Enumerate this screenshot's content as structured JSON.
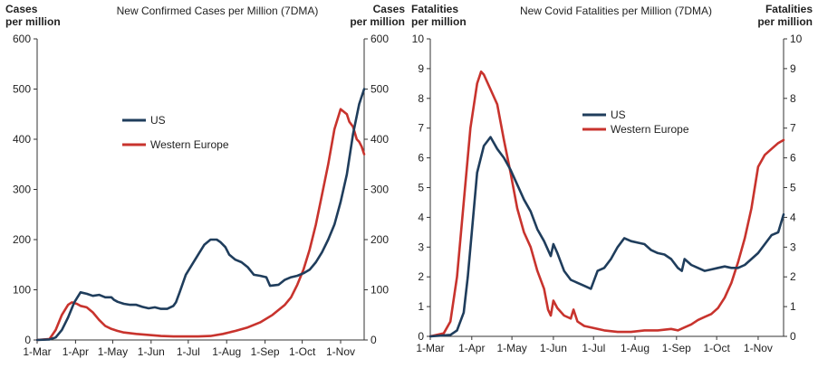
{
  "chart_data": [
    {
      "type": "line",
      "title": "New Confirmed  Cases per Million (7DMA)",
      "ylabel_left": [
        "Cases",
        "per million"
      ],
      "ylabel_right": [
        "Cases",
        "per million"
      ],
      "ylim": [
        0,
        600
      ],
      "yticks": [
        "0",
        "100",
        "200",
        "300",
        "400",
        "500",
        "600"
      ],
      "xlim": [
        0,
        264
      ],
      "xticks": [
        {
          "label": "1-Mar",
          "x": 0
        },
        {
          "label": "1-Apr",
          "x": 31
        },
        {
          "label": "1-May",
          "x": 61
        },
        {
          "label": "1-Jun",
          "x": 92
        },
        {
          "label": "1-Jul",
          "x": 122
        },
        {
          "label": "1-Aug",
          "x": 153
        },
        {
          "label": "1-Sep",
          "x": 184
        },
        {
          "label": "1-Oct",
          "x": 214
        },
        {
          "label": "1-Nov",
          "x": 245
        }
      ],
      "series": [
        {
          "name": "US",
          "color": "#1f3d5c",
          "x": [
            0,
            10,
            15,
            20,
            25,
            30,
            35,
            40,
            45,
            50,
            55,
            60,
            62,
            65,
            70,
            75,
            80,
            85,
            90,
            95,
            100,
            105,
            110,
            112,
            115,
            120,
            125,
            130,
            135,
            140,
            145,
            148,
            152,
            155,
            160,
            165,
            170,
            175,
            180,
            185,
            188,
            195,
            200,
            205,
            210,
            215,
            220,
            225,
            230,
            235,
            240,
            245,
            250,
            255,
            260,
            264
          ],
          "y": [
            0,
            1,
            5,
            20,
            45,
            75,
            95,
            92,
            88,
            90,
            85,
            85,
            80,
            76,
            72,
            70,
            70,
            66,
            63,
            65,
            62,
            62,
            68,
            75,
            95,
            130,
            150,
            170,
            190,
            200,
            200,
            195,
            185,
            170,
            160,
            155,
            145,
            130,
            128,
            125,
            108,
            110,
            120,
            125,
            128,
            133,
            140,
            155,
            175,
            200,
            230,
            275,
            330,
            410,
            470,
            500
          ]
        },
        {
          "name": "Western Europe",
          "color": "#c8332d",
          "x": [
            0,
            10,
            15,
            20,
            25,
            28,
            32,
            35,
            40,
            45,
            50,
            55,
            60,
            65,
            70,
            80,
            90,
            100,
            110,
            120,
            130,
            140,
            150,
            160,
            170,
            180,
            190,
            200,
            205,
            210,
            215,
            220,
            225,
            230,
            235,
            240,
            245,
            250,
            252,
            255,
            258,
            260,
            262,
            264
          ],
          "y": [
            0,
            2,
            20,
            50,
            70,
            75,
            72,
            68,
            65,
            55,
            40,
            28,
            22,
            18,
            15,
            12,
            10,
            8,
            7,
            7,
            7,
            8,
            12,
            18,
            25,
            35,
            50,
            70,
            85,
            110,
            140,
            180,
            230,
            290,
            350,
            420,
            460,
            450,
            435,
            425,
            400,
            395,
            385,
            370
          ]
        }
      ],
      "legend": "center-left",
      "grid": false
    },
    {
      "type": "line",
      "title": "New Covid  Fatalities per Million (7DMA)",
      "ylabel_left": [
        "Fatalities",
        "per million"
      ],
      "ylabel_right": [
        "Fatalities",
        "per million"
      ],
      "ylim": [
        0,
        10
      ],
      "yticks": [
        "0",
        "1",
        "2",
        "3",
        "4",
        "5",
        "6",
        "7",
        "8",
        "9",
        "10"
      ],
      "xlim": [
        0,
        264
      ],
      "xticks": [
        {
          "label": "1-Mar",
          "x": 0
        },
        {
          "label": "1-Apr",
          "x": 31
        },
        {
          "label": "1-May",
          "x": 61
        },
        {
          "label": "1-Jun",
          "x": 92
        },
        {
          "label": "1-Jul",
          "x": 122
        },
        {
          "label": "1-Aug",
          "x": 153
        },
        {
          "label": "1-Sep",
          "x": 184
        },
        {
          "label": "1-Oct",
          "x": 214
        },
        {
          "label": "1-Nov",
          "x": 245
        }
      ],
      "series": [
        {
          "name": "US",
          "color": "#1f3d5c",
          "x": [
            0,
            15,
            20,
            25,
            28,
            32,
            35,
            40,
            45,
            50,
            55,
            60,
            65,
            70,
            75,
            80,
            85,
            90,
            92,
            95,
            100,
            105,
            110,
            115,
            120,
            125,
            130,
            135,
            140,
            145,
            150,
            155,
            160,
            165,
            170,
            175,
            180,
            185,
            188,
            190,
            195,
            200,
            205,
            210,
            215,
            220,
            225,
            230,
            235,
            240,
            245,
            250,
            255,
            260,
            264
          ],
          "y": [
            0,
            0.05,
            0.2,
            0.8,
            2,
            4,
            5.5,
            6.4,
            6.7,
            6.3,
            6,
            5.6,
            5.1,
            4.6,
            4.2,
            3.6,
            3.2,
            2.7,
            3.1,
            2.8,
            2.2,
            1.9,
            1.8,
            1.7,
            1.6,
            2.2,
            2.3,
            2.6,
            3,
            3.3,
            3.2,
            3.15,
            3.1,
            2.9,
            2.8,
            2.75,
            2.6,
            2.3,
            2.2,
            2.6,
            2.4,
            2.3,
            2.2,
            2.25,
            2.3,
            2.35,
            2.3,
            2.3,
            2.4,
            2.6,
            2.8,
            3.1,
            3.4,
            3.5,
            4.1
          ]
        },
        {
          "name": "Western Europe",
          "color": "#c8332d",
          "x": [
            0,
            10,
            15,
            20,
            25,
            30,
            35,
            38,
            40,
            45,
            50,
            55,
            60,
            65,
            70,
            75,
            80,
            85,
            88,
            90,
            92,
            95,
            100,
            105,
            107,
            110,
            115,
            120,
            130,
            140,
            150,
            160,
            170,
            180,
            185,
            190,
            195,
            200,
            205,
            210,
            215,
            220,
            225,
            230,
            235,
            240,
            245,
            250,
            255,
            260,
            264
          ],
          "y": [
            0,
            0.1,
            0.5,
            2,
            4.5,
            7,
            8.5,
            8.9,
            8.8,
            8.3,
            7.8,
            6.6,
            5.5,
            4.3,
            3.5,
            3,
            2.2,
            1.6,
            0.9,
            0.7,
            1.2,
            0.95,
            0.7,
            0.6,
            0.9,
            0.5,
            0.35,
            0.3,
            0.2,
            0.15,
            0.15,
            0.2,
            0.2,
            0.25,
            0.2,
            0.3,
            0.4,
            0.55,
            0.65,
            0.75,
            0.95,
            1.3,
            1.8,
            2.5,
            3.3,
            4.3,
            5.7,
            6.1,
            6.3,
            6.5,
            6.6
          ]
        }
      ],
      "legend": "center-right",
      "grid": false
    }
  ]
}
